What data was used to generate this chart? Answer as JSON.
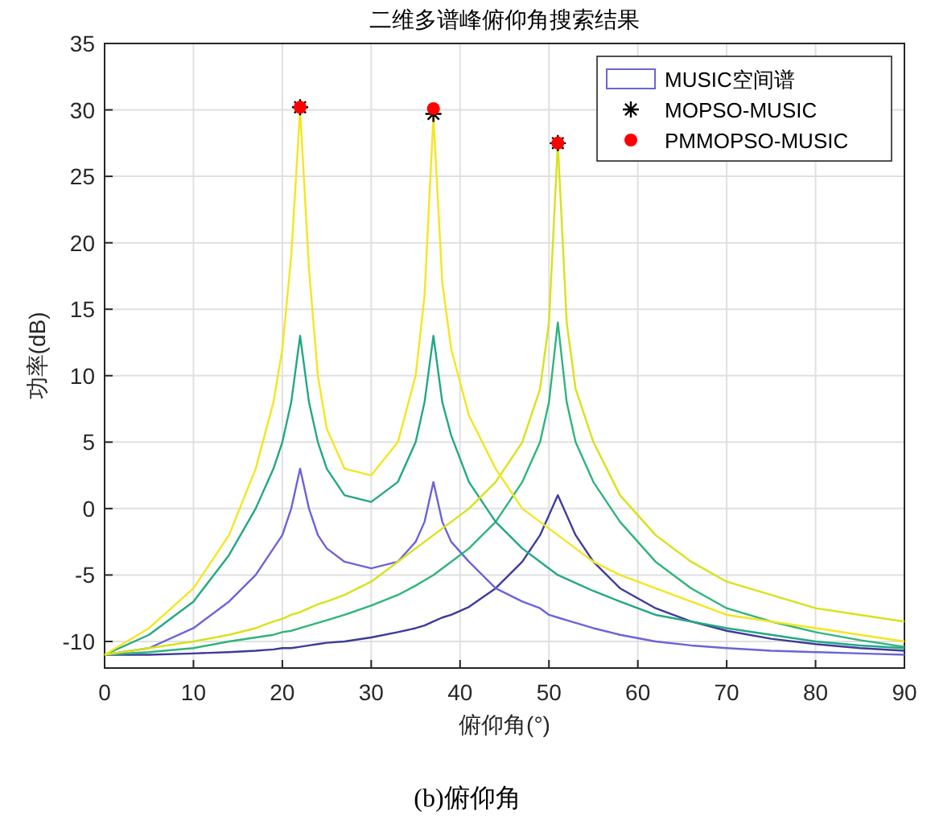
{
  "chart_data": {
    "type": "line",
    "title": "二维多谱峰俯仰角搜索结果",
    "xlabel": "俯仰角(°)",
    "ylabel": "功率(dB)",
    "annotations": [
      "(b)俯仰角"
    ],
    "x": [
      0,
      5,
      10,
      14,
      17,
      19,
      20,
      21,
      22,
      23,
      24,
      25,
      27,
      30,
      33,
      35,
      36,
      37,
      38,
      39,
      41,
      44,
      47,
      49,
      50,
      51,
      52,
      53,
      55,
      58,
      62,
      66,
      70,
      75,
      80,
      85,
      90
    ],
    "xlim": [
      0,
      90
    ],
    "xticks": [
      0,
      10,
      20,
      30,
      40,
      50,
      60,
      70,
      80,
      90
    ],
    "ylim": [
      -12,
      35
    ],
    "yticks": [
      -10,
      -5,
      0,
      5,
      10,
      15,
      20,
      25,
      30,
      35
    ],
    "grid": true,
    "legend": "top right",
    "line_style": "solid",
    "series": [
      {
        "color": "#3e3a9a",
        "values": [
          -11,
          -11,
          -10.9,
          -10.8,
          -10.7,
          -10.6,
          -10.5,
          -10.5,
          -10.4,
          -10.3,
          -10.2,
          -10.1,
          -10,
          -9.7,
          -9.3,
          -9,
          -8.8,
          -8.5,
          -8.2,
          -8,
          -7.4,
          -6,
          -4,
          -2,
          -0.5,
          1,
          -0.5,
          -2,
          -4,
          -6,
          -7.5,
          -8.5,
          -9.2,
          -9.8,
          -10.2,
          -10.5,
          -10.7
        ]
      },
      {
        "name": "MUSIC空间谱",
        "color": "#6c63d9",
        "values": [
          -11,
          -10.5,
          -9,
          -7,
          -5,
          -3,
          -2,
          0,
          3,
          0,
          -2,
          -3,
          -4,
          -4.5,
          -4,
          -2.5,
          -1,
          2,
          -1,
          -2.5,
          -4,
          -6,
          -7,
          -7.5,
          -8,
          -8.2,
          -8.4,
          -8.6,
          -9,
          -9.5,
          -10,
          -10.3,
          -10.5,
          -10.7,
          -10.8,
          -10.9,
          -11
        ]
      },
      {
        "color": "#2fb47c",
        "values": [
          -11,
          -10.8,
          -10.5,
          -10,
          -9.7,
          -9.5,
          -9.3,
          -9.2,
          -9,
          -8.8,
          -8.6,
          -8.4,
          -8,
          -7.3,
          -6.5,
          -5.8,
          -5.4,
          -5,
          -4.5,
          -4,
          -3,
          -1,
          2,
          5,
          8,
          14,
          8,
          5,
          2,
          -1,
          -4,
          -6,
          -7.5,
          -8.5,
          -9.3,
          -9.9,
          -10.4
        ]
      },
      {
        "color": "#22a884",
        "values": [
          -11,
          -9.5,
          -7,
          -3.5,
          0,
          3,
          5,
          8,
          13,
          8,
          5,
          3,
          1,
          0.5,
          2,
          5,
          8,
          13,
          8,
          5.5,
          2,
          -1,
          -3,
          -4,
          -4.5,
          -5,
          -5.3,
          -5.6,
          -6.2,
          -7,
          -8,
          -8.5,
          -9,
          -9.5,
          -10,
          -10.3,
          -10.5
        ]
      },
      {
        "color": "#d8e219",
        "values": [
          -11,
          -10.5,
          -10,
          -9.5,
          -9,
          -8.5,
          -8.3,
          -8,
          -7.8,
          -7.5,
          -7.2,
          -7,
          -6.5,
          -5.5,
          -4,
          -3,
          -2.5,
          -2,
          -1.5,
          -1,
          0,
          2,
          5,
          9,
          14,
          27.5,
          14,
          9,
          5,
          1,
          -2,
          -4,
          -5.5,
          -6.5,
          -7.5,
          -8,
          -8.5
        ]
      },
      {
        "color": "#f4e61e",
        "values": [
          -11,
          -9,
          -6,
          -2,
          3,
          8,
          12,
          19,
          30,
          18,
          10,
          6,
          3,
          2.5,
          5,
          10,
          16,
          29.5,
          17,
          12,
          7,
          3,
          0,
          -1,
          -1.5,
          -2,
          -2.5,
          -3,
          -4,
          -5,
          -6,
          -7,
          -8,
          -8.5,
          -9,
          -9.5,
          -10
        ]
      },
      {
        "name": "MOPSO-MUSIC",
        "type": "scatter",
        "marker": "cross",
        "color": "#000000",
        "x": [
          22,
          37,
          51
        ],
        "values": [
          30.2,
          29.7,
          27.5
        ]
      },
      {
        "name": "PMMOPSO-MUSIC",
        "type": "scatter",
        "marker": "circle",
        "color": "#ff0000",
        "x": [
          22,
          37,
          51
        ],
        "values": [
          30.2,
          30.1,
          27.5
        ]
      }
    ]
  }
}
